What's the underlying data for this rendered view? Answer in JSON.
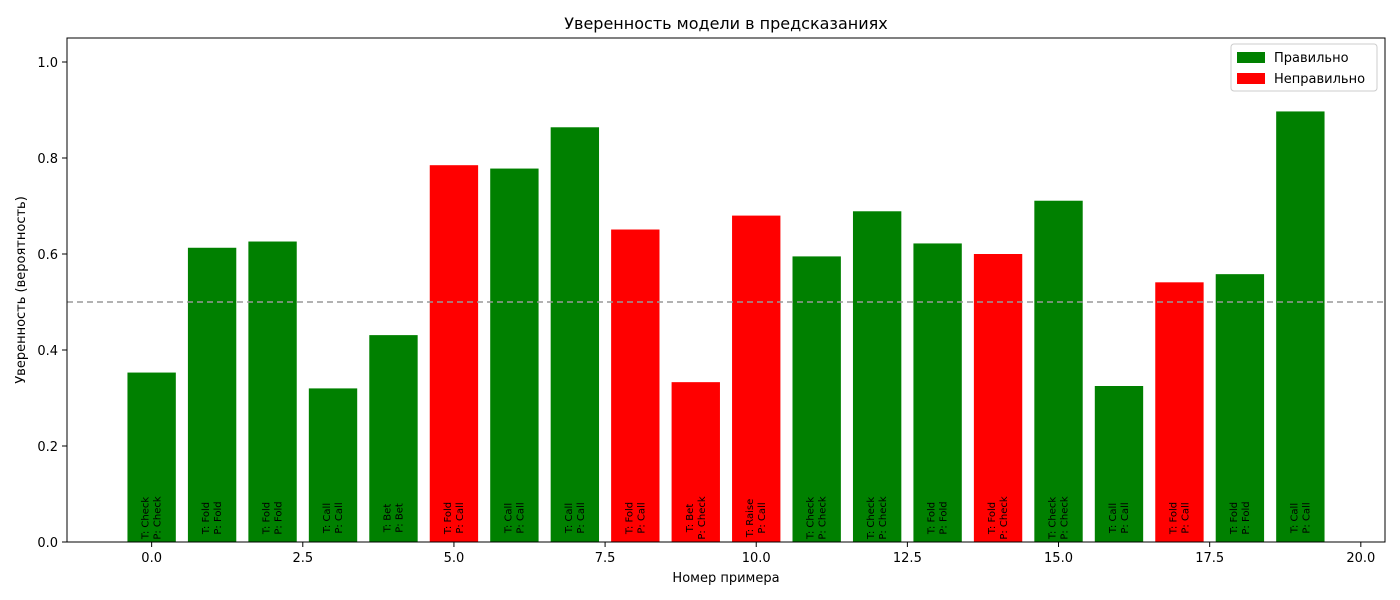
{
  "chart_data": {
    "type": "bar",
    "title": "Уверенность модели в предсказаниях",
    "xlabel": "Номер примера",
    "ylabel": "Уверенность (вероятность)",
    "xlim": [
      -1.4,
      20.4
    ],
    "ylim": [
      0,
      1.05
    ],
    "xticks": [
      0.0,
      2.5,
      5.0,
      7.5,
      10.0,
      12.5,
      15.0,
      17.5,
      20.0
    ],
    "xtick_labels": [
      "0.0",
      "2.5",
      "5.0",
      "7.5",
      "10.0",
      "12.5",
      "15.0",
      "17.5",
      "20.0"
    ],
    "yticks": [
      0.0,
      0.2,
      0.4,
      0.6,
      0.8,
      1.0
    ],
    "ytick_labels": [
      "0.0",
      "0.2",
      "0.4",
      "0.6",
      "0.8",
      "1.0"
    ],
    "threshold": 0.5,
    "colors": {
      "correct": "#008000",
      "incorrect": "#ff0000",
      "threshold": "#999999"
    },
    "legend": {
      "placement": "top-right",
      "entries": [
        {
          "label": "Правильно",
          "color": "#008000"
        },
        {
          "label": "Неправильно",
          "color": "#ff0000"
        }
      ]
    },
    "bars": [
      {
        "x": 0,
        "value": 0.353,
        "correct": true,
        "label_true": "T: Check",
        "label_pred": "P: Check"
      },
      {
        "x": 1,
        "value": 0.613,
        "correct": true,
        "label_true": "T: Fold",
        "label_pred": "P: Fold"
      },
      {
        "x": 2,
        "value": 0.626,
        "correct": true,
        "label_true": "T: Fold",
        "label_pred": "P: Fold"
      },
      {
        "x": 3,
        "value": 0.32,
        "correct": true,
        "label_true": "T: Call",
        "label_pred": "P: Call"
      },
      {
        "x": 4,
        "value": 0.431,
        "correct": true,
        "label_true": "T: Bet",
        "label_pred": "P: Bet"
      },
      {
        "x": 5,
        "value": 0.785,
        "correct": false,
        "label_true": "T: Fold",
        "label_pred": "P: Call"
      },
      {
        "x": 6,
        "value": 0.778,
        "correct": true,
        "label_true": "T: Call",
        "label_pred": "P: Call"
      },
      {
        "x": 7,
        "value": 0.864,
        "correct": true,
        "label_true": "T: Call",
        "label_pred": "P: Call"
      },
      {
        "x": 8,
        "value": 0.651,
        "correct": false,
        "label_true": "T: Fold",
        "label_pred": "P: Call"
      },
      {
        "x": 9,
        "value": 0.333,
        "correct": false,
        "label_true": "T: Bet",
        "label_pred": "P: Check"
      },
      {
        "x": 10,
        "value": 0.68,
        "correct": false,
        "label_true": "T: Raise",
        "label_pred": "P: Call"
      },
      {
        "x": 11,
        "value": 0.595,
        "correct": true,
        "label_true": "T: Check",
        "label_pred": "P: Check"
      },
      {
        "x": 12,
        "value": 0.689,
        "correct": true,
        "label_true": "T: Check",
        "label_pred": "P: Check"
      },
      {
        "x": 13,
        "value": 0.622,
        "correct": true,
        "label_true": "T: Fold",
        "label_pred": "P: Fold"
      },
      {
        "x": 14,
        "value": 0.6,
        "correct": false,
        "label_true": "T: Fold",
        "label_pred": "P: Check"
      },
      {
        "x": 15,
        "value": 0.711,
        "correct": true,
        "label_true": "T: Check",
        "label_pred": "P: Check"
      },
      {
        "x": 16,
        "value": 0.325,
        "correct": true,
        "label_true": "T: Call",
        "label_pred": "P: Call"
      },
      {
        "x": 17,
        "value": 0.541,
        "correct": false,
        "label_true": "T: Fold",
        "label_pred": "P: Call"
      },
      {
        "x": 18,
        "value": 0.558,
        "correct": true,
        "label_true": "T: Fold",
        "label_pred": "P: Fold"
      },
      {
        "x": 19,
        "value": 0.897,
        "correct": true,
        "label_true": "T: Call",
        "label_pred": "P: Call"
      }
    ]
  }
}
